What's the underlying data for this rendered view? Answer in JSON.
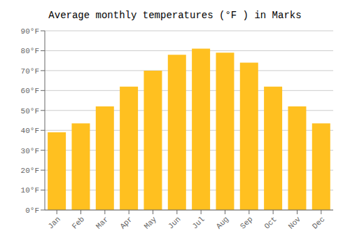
{
  "chart_data": {
    "type": "bar",
    "title": "Average monthly temperatures (°F ) in Marks",
    "categories": [
      "Jan",
      "Feb",
      "Mar",
      "Apr",
      "May",
      "Jun",
      "Jul",
      "Aug",
      "Sep",
      "Oct",
      "Nov",
      "Dec"
    ],
    "values": [
      39,
      43.5,
      52,
      62,
      70,
      78,
      81,
      79,
      74,
      62,
      52,
      43.5
    ],
    "color": "#FFC020",
    "ylim": [
      0,
      90
    ],
    "yticks": [
      {
        "value": 0,
        "label": "0°F"
      },
      {
        "value": 10,
        "label": "10°F"
      },
      {
        "value": 20,
        "label": "20°F"
      },
      {
        "value": 30,
        "label": "30°F"
      },
      {
        "value": 40,
        "label": "40°F"
      },
      {
        "value": 50,
        "label": "50°F"
      },
      {
        "value": 60,
        "label": "60°F"
      },
      {
        "value": 70,
        "label": "70°F"
      },
      {
        "value": 80,
        "label": "80°F"
      },
      {
        "value": 90,
        "label": "90°F"
      }
    ],
    "grid": true
  }
}
